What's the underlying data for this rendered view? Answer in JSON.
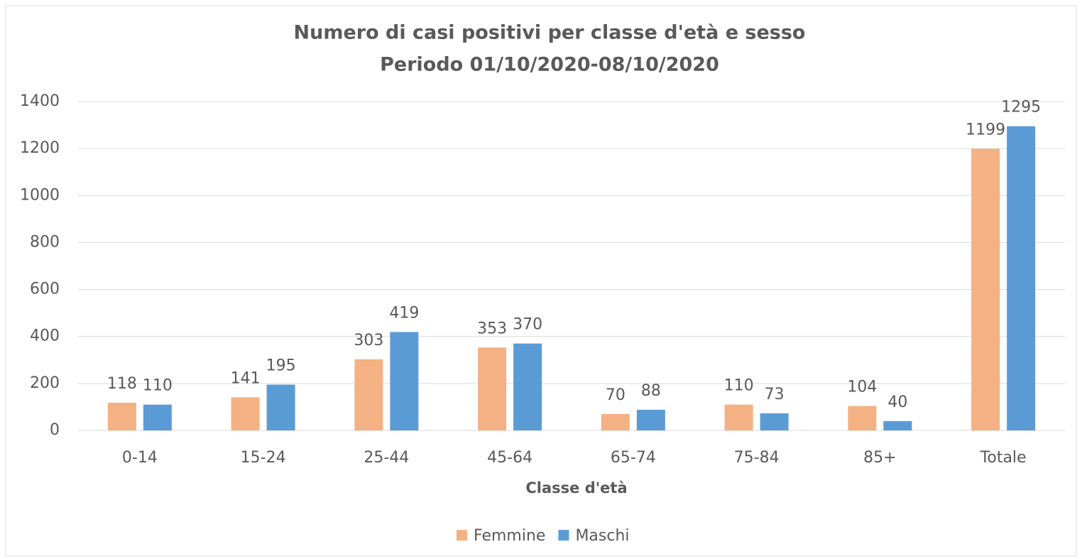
{
  "chart_data": {
    "type": "bar",
    "title": "Numero di casi positivi per classe d'età e sesso",
    "subtitle": "Periodo 01/10/2020-08/10/2020",
    "x_label": "Classe d'età",
    "categories": [
      "0-14",
      "15-24",
      "25-44",
      "45-64",
      "65-74",
      "75-84",
      "85+",
      "Totale"
    ],
    "series": [
      {
        "name": "Femmine",
        "color": "#f4b183",
        "values": [
          118,
          141,
          303,
          353,
          70,
          110,
          104,
          1199
        ]
      },
      {
        "name": "Maschi",
        "color": "#5b9bd5",
        "values": [
          110,
          195,
          419,
          370,
          88,
          73,
          40,
          1295
        ]
      }
    ],
    "ylim": [
      0,
      1400
    ],
    "yticks": [
      0,
      200,
      400,
      600,
      800,
      1000,
      1200,
      1400
    ],
    "grid": true,
    "legend": "bottom"
  }
}
